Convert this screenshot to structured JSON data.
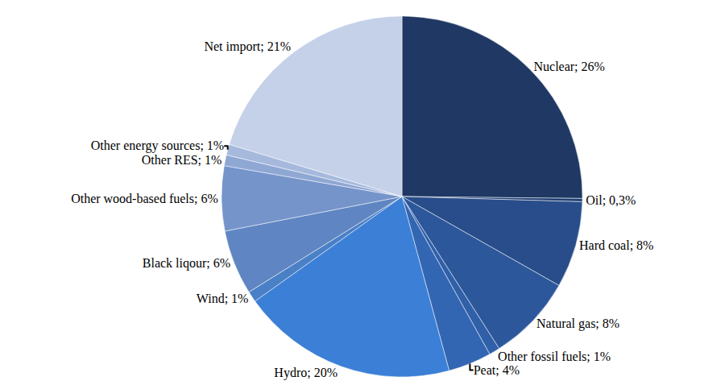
{
  "chart_data": {
    "type": "pie",
    "categories": [
      "Nuclear",
      "Oil",
      "Hard coal",
      "Natural gas",
      "Other fossil fuels",
      "Peat",
      "Hydro",
      "Wind",
      "Black liqour",
      "Other wood-based fuels",
      "Other RES",
      "Other energy sources",
      "Net import"
    ],
    "values": [
      26,
      0.3,
      8,
      8,
      1,
      4,
      20,
      1,
      6,
      6,
      1,
      1,
      21
    ],
    "value_labels": [
      "Nuclear; 26%",
      "Oil; 0,3%",
      "Hard coal; 8%",
      "Natural gas; 8%",
      "Other fossil fuels; 1%",
      "Peat; 4%",
      "Hydro; 20%",
      "Wind; 1%",
      "Black liqour; 6%",
      "Other wood-based fuels; 6%",
      "Other RES; 1%",
      "Other energy sources; 1%",
      "Net import; 21%"
    ],
    "colors": [
      "#1f3864",
      "#203f75",
      "#284d8a",
      "#2d579b",
      "#3060a8",
      "#3366b2",
      "#3c7fd6",
      "#4a80c6",
      "#5f86c2",
      "#7594ca",
      "#8fa7d3",
      "#a6b9dd",
      "#c4d1e8"
    ],
    "data_labels": true,
    "legend": "none"
  }
}
